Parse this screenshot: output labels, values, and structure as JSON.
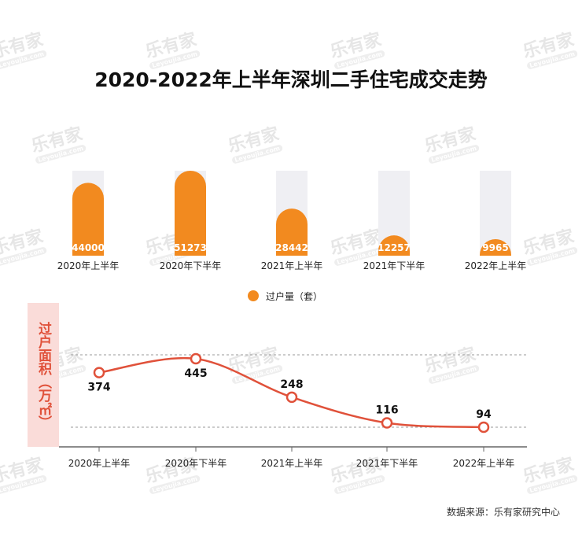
{
  "title": "2020-2022年上半年深圳二手住宅成交走势",
  "watermark": {
    "text": "乐有家",
    "sub": "Leyoujia.com"
  },
  "source": "数据来源：乐有家研究中心",
  "chart_data": [
    {
      "type": "bar",
      "title": "2020-2022年上半年深圳二手住宅成交走势",
      "categories": [
        "2020年上半年",
        "2020年下半年",
        "2021年上半年",
        "2021年下半年",
        "2022年上半年"
      ],
      "series": [
        {
          "name": "过户量（套）",
          "values": [
            44000,
            51273,
            28442,
            12257,
            9965
          ]
        }
      ],
      "legend": "bottom",
      "color": "#f28a1f",
      "track_color": "#efeff3"
    },
    {
      "type": "line",
      "categories": [
        "2020年上半年",
        "2020年下半年",
        "2021年上半年",
        "2021年下半年",
        "2022年上半年"
      ],
      "ylabel": "过户面积（万㎡）",
      "series": [
        {
          "name": "过户面积",
          "values": [
            374,
            445,
            248,
            116,
            94
          ]
        }
      ],
      "color": "#e0513a"
    }
  ]
}
